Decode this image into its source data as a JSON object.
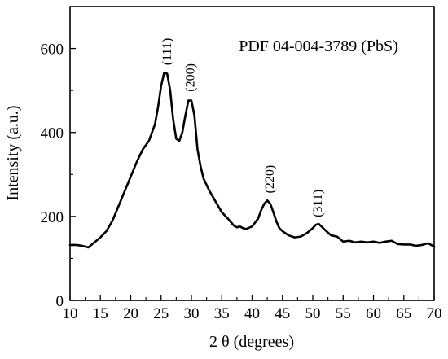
{
  "chart_data": {
    "type": "line",
    "annotation": "PDF 04-004-3789 (PbS)",
    "xlabel": "2 θ (degrees)",
    "ylabel": "Intensity (a.u.)",
    "xlim": [
      10,
      70
    ],
    "ylim": [
      0,
      700
    ],
    "xticks": [
      10,
      15,
      20,
      25,
      30,
      35,
      40,
      45,
      50,
      55,
      60,
      65,
      70
    ],
    "yticks": [
      0,
      200,
      400,
      600
    ],
    "grid": false,
    "legend": "none",
    "line_color": "#000000",
    "series": [
      {
        "x": [
          10,
          11,
          12,
          13,
          14,
          15,
          16,
          17,
          18,
          19,
          20,
          21,
          22,
          23,
          24,
          24.5,
          25,
          25.5,
          26,
          26.5,
          27,
          27.5,
          28,
          28.5,
          29,
          29.5,
          30,
          30.5,
          31,
          31.5,
          32,
          33,
          34,
          35,
          36,
          37,
          37.5,
          38,
          38.5,
          39,
          40,
          41,
          41.5,
          42,
          42.5,
          43,
          43.5,
          44,
          44.5,
          45,
          46,
          47,
          48,
          49,
          50,
          50.5,
          51,
          51.5,
          52,
          53,
          54,
          55,
          56,
          57,
          58,
          59,
          60,
          61,
          62,
          63,
          64,
          65,
          66,
          67,
          68,
          69,
          70
        ],
        "y": [
          132,
          132,
          130,
          126,
          138,
          150,
          165,
          190,
          225,
          260,
          295,
          330,
          360,
          380,
          420,
          460,
          510,
          542,
          540,
          500,
          430,
          385,
          380,
          400,
          440,
          476,
          476,
          440,
          360,
          320,
          290,
          260,
          235,
          210,
          195,
          178,
          174,
          176,
          172,
          170,
          176,
          195,
          215,
          230,
          238,
          230,
          210,
          188,
          172,
          165,
          155,
          150,
          152,
          160,
          172,
          180,
          182,
          175,
          168,
          155,
          152,
          140,
          142,
          138,
          140,
          138,
          140,
          137,
          140,
          142,
          134,
          133,
          133,
          130,
          132,
          136,
          128
        ]
      }
    ],
    "peak_labels": [
      {
        "text": "(111)",
        "x": 26.0,
        "y": 560
      },
      {
        "text": "(200)",
        "x": 29.8,
        "y": 497
      },
      {
        "text": "(220)",
        "x": 42.9,
        "y": 255
      },
      {
        "text": "(311)",
        "x": 50.8,
        "y": 198
      }
    ]
  }
}
